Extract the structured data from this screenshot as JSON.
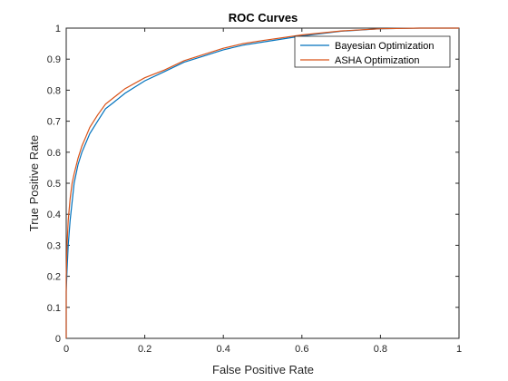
{
  "chart_data": {
    "type": "line",
    "title": "ROC Curves",
    "xlabel": "False Positive Rate",
    "ylabel": "True Positive Rate",
    "xlim": [
      0,
      1
    ],
    "ylim": [
      0,
      1
    ],
    "x_ticks": [
      "0",
      "0.2",
      "0.4",
      "0.6",
      "0.8",
      "1"
    ],
    "y_ticks": [
      "0",
      "0.1",
      "0.2",
      "0.3",
      "0.4",
      "0.5",
      "0.6",
      "0.7",
      "0.8",
      "0.9",
      "1"
    ],
    "grid": false,
    "legend_position": "top-right",
    "series": [
      {
        "name": "Bayesian Optimization",
        "color": "#0072BD",
        "x": [
          0,
          0,
          0.002,
          0.005,
          0.01,
          0.015,
          0.02,
          0.03,
          0.04,
          0.05,
          0.06,
          0.08,
          0.1,
          0.12,
          0.15,
          0.2,
          0.25,
          0.3,
          0.35,
          0.4,
          0.45,
          0.5,
          0.6,
          0.7,
          0.8,
          0.9,
          1
        ],
        "y": [
          0,
          0.15,
          0.22,
          0.3,
          0.38,
          0.44,
          0.5,
          0.56,
          0.6,
          0.63,
          0.66,
          0.7,
          0.74,
          0.76,
          0.79,
          0.83,
          0.86,
          0.89,
          0.91,
          0.93,
          0.945,
          0.955,
          0.975,
          0.99,
          0.998,
          1,
          1
        ]
      },
      {
        "name": "ASHA Optimization",
        "color": "#D95319",
        "x": [
          0,
          0,
          0.002,
          0.005,
          0.01,
          0.015,
          0.02,
          0.03,
          0.04,
          0.05,
          0.06,
          0.08,
          0.1,
          0.12,
          0.15,
          0.2,
          0.25,
          0.3,
          0.35,
          0.4,
          0.45,
          0.5,
          0.6,
          0.7,
          0.8,
          0.9,
          1
        ],
        "y": [
          0,
          0.2,
          0.3,
          0.38,
          0.45,
          0.5,
          0.53,
          0.58,
          0.62,
          0.65,
          0.68,
          0.72,
          0.755,
          0.775,
          0.805,
          0.84,
          0.865,
          0.895,
          0.915,
          0.935,
          0.95,
          0.96,
          0.978,
          0.991,
          0.998,
          1,
          1
        ]
      }
    ]
  }
}
